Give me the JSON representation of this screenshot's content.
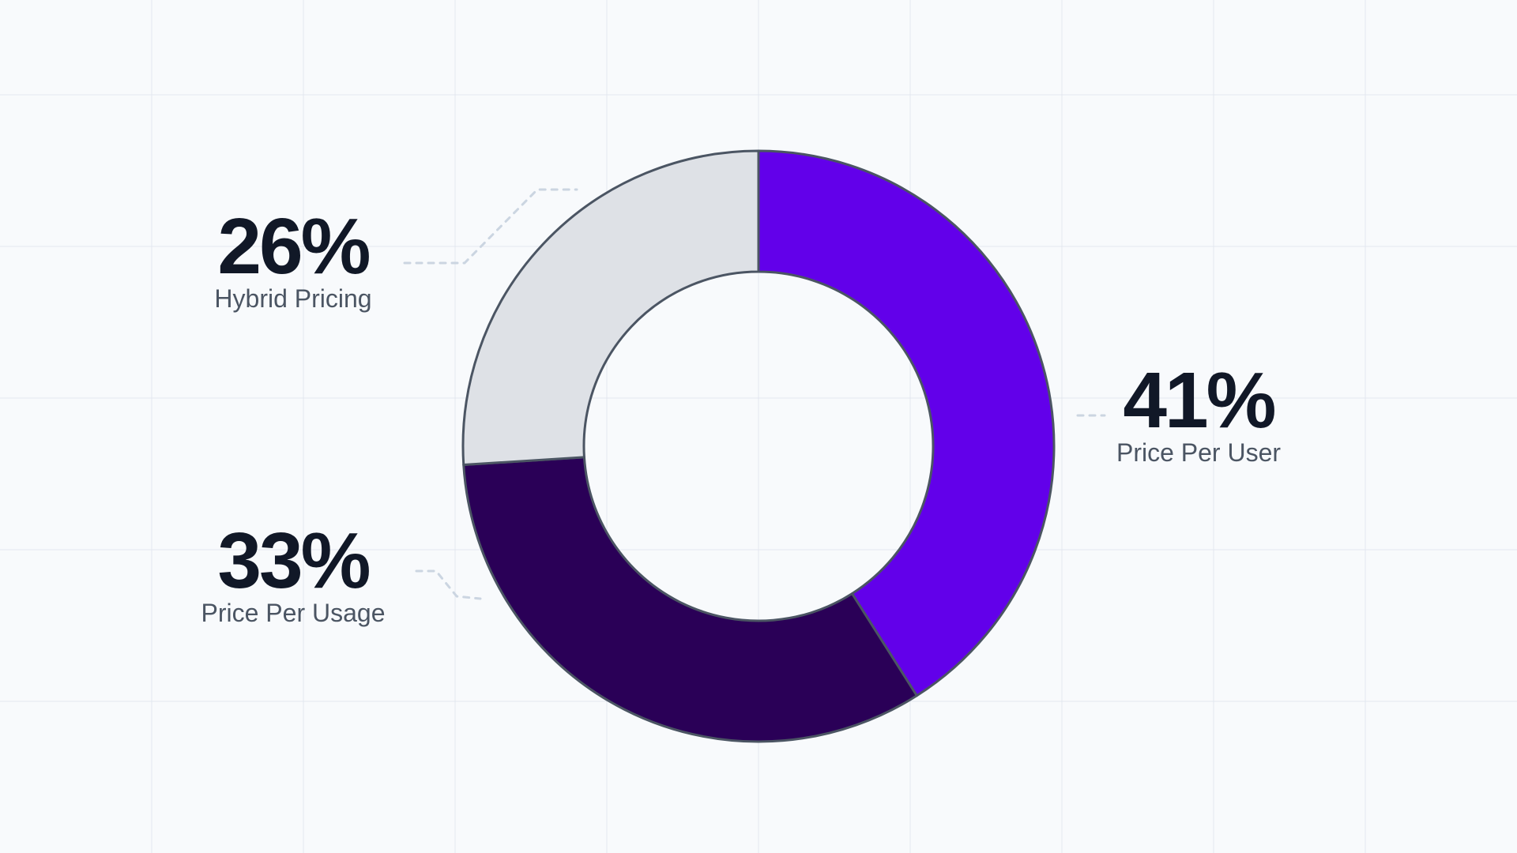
{
  "chart_data": {
    "type": "pie",
    "variant": "donut",
    "title": "",
    "legend": "none",
    "grid": true,
    "slices": [
      {
        "label": "Price Per User",
        "value": 41,
        "display": "41%",
        "color": "#6200ea"
      },
      {
        "label": "Price Per Usage",
        "value": 33,
        "display": "33%",
        "color": "#2a0057"
      },
      {
        "label": "Hybrid Pricing",
        "value": 26,
        "display": "26%",
        "color": "#dee1e6"
      }
    ]
  },
  "colors": {
    "background": "#f8fafc",
    "grid_line": "#e3e8ef",
    "ring_outline": "#4b5563",
    "leader_line": "#cbd5e1",
    "value_text": "#111827",
    "label_text": "#4b5563"
  }
}
